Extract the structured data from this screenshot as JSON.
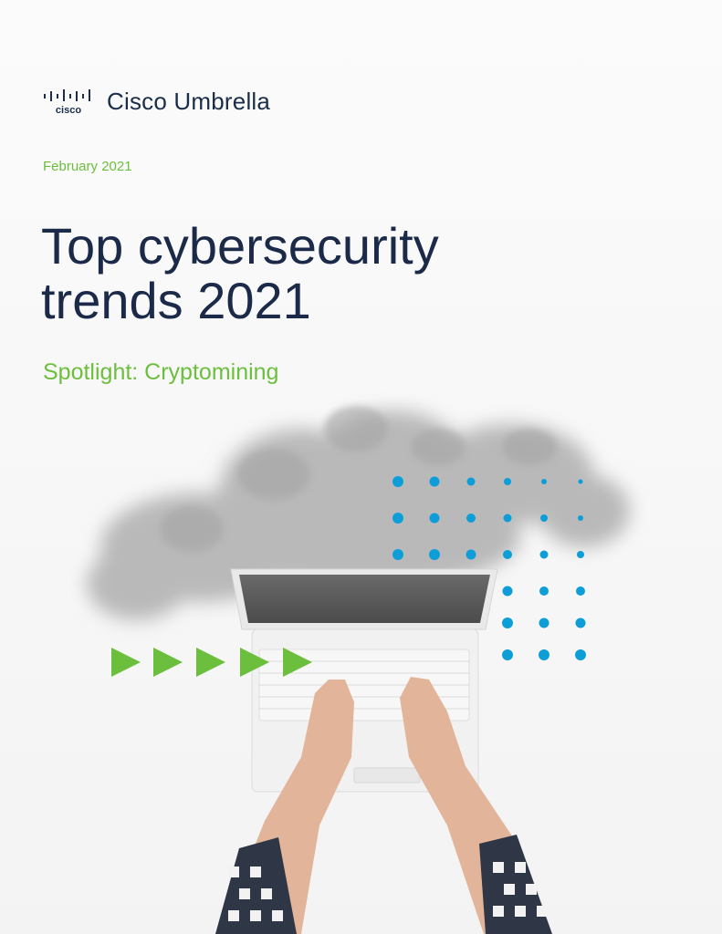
{
  "brand": {
    "logo_text": "cisco",
    "product_name": "Cisco Umbrella"
  },
  "cover": {
    "date": "February 2021",
    "title": "Top cybersecurity\ntrends 2021",
    "subtitle": "Spotlight: Cryptomining"
  },
  "colors": {
    "accent_green": "#6cbf3c",
    "dot_blue": "#0d9ed8",
    "title_navy": "#1b2a48"
  },
  "illustration": {
    "description_icons": [
      "cloud-icon",
      "laptop-icon",
      "arrow-right-icon",
      "dot-grid-icon"
    ]
  }
}
